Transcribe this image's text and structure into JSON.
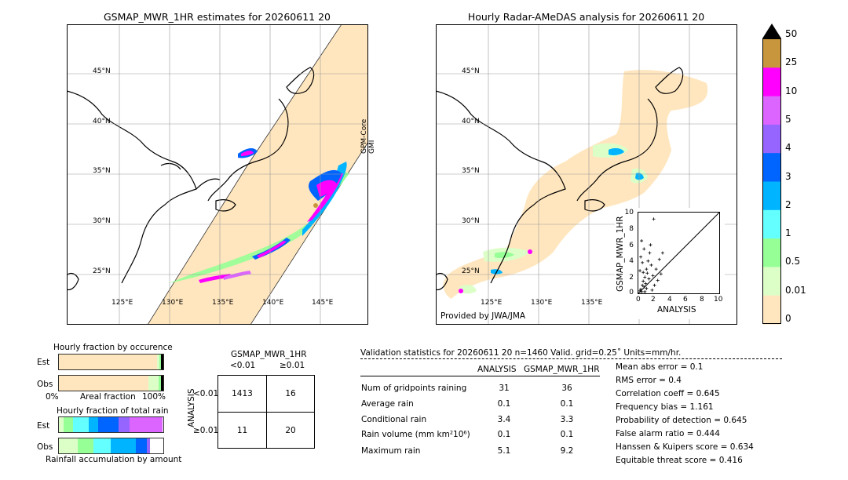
{
  "left_map": {
    "title": "GSMAP_MWR_1HR estimates for 20260611 20",
    "sensor_label_1": "GPM-Core",
    "sensor_label_2": "GMI",
    "lat_labels": [
      "45°N",
      "40°N",
      "35°N",
      "30°N",
      "25°N"
    ],
    "lon_labels": [
      "125°E",
      "130°E",
      "135°E",
      "140°E",
      "145°E"
    ]
  },
  "right_map": {
    "title": "Hourly Radar-AMeDAS analysis for 20260611 20",
    "credit": "Provided by JWA/JMA",
    "lat_labels": [
      "45°N",
      "40°N",
      "35°N",
      "30°N",
      "25°N"
    ],
    "lon_labels": [
      "125°E",
      "130°E",
      "135°E"
    ]
  },
  "colorbar": {
    "levels": [
      "50",
      "25",
      "10",
      "5",
      "4",
      "3",
      "2",
      "1",
      "0.5",
      "0.01",
      "0"
    ],
    "colors": [
      "#c8963c",
      "#ff00ff",
      "#dc64ff",
      "#9664ff",
      "#0064ff",
      "#00b4ff",
      "#64ffff",
      "#96ff96",
      "#dcffc8",
      "#ffe6be"
    ],
    "over_color": "#000000"
  },
  "scatter": {
    "ylabel": "GSMAP_MWR_1HR",
    "xlabel": "ANALYSIS",
    "ticks": [
      "0",
      "2",
      "4",
      "6",
      "8",
      "10"
    ]
  },
  "fraction_occurrence": {
    "title": "Hourly fraction by occurence",
    "rows": [
      "Est",
      "Obs"
    ],
    "xlabel_left": "0%",
    "xlabel_mid": "Areal fraction",
    "xlabel_right": "100%"
  },
  "fraction_total": {
    "title": "Hourly fraction of total rain",
    "rows": [
      "Est",
      "Obs"
    ],
    "footer": "Rainfall accumulation by amount"
  },
  "contingency": {
    "title": "GSMAP_MWR_1HR",
    "col_headers": [
      "<0.01",
      "≥0.01"
    ],
    "row_label": "ANALYSIS",
    "row_headers": [
      "<0.01",
      "≥0.01"
    ],
    "cells": [
      [
        "1413",
        "16"
      ],
      [
        "11",
        "20"
      ]
    ]
  },
  "validation": {
    "header": "Validation statistics for 20260611 20  n=1460 Valid. grid=0.25˚ Units=mm/hr.",
    "col1": "ANALYSIS",
    "col2": "GSMAP_MWR_1HR",
    "rows": [
      {
        "label": "Num of gridpoints raining",
        "a": "31",
        "b": "36"
      },
      {
        "label": "Average rain",
        "a": "0.1",
        "b": "0.1"
      },
      {
        "label": "Conditional rain",
        "a": "3.4",
        "b": "3.3"
      },
      {
        "label": "Rain volume (mm km²10⁶)",
        "a": "0.1",
        "b": "0.1"
      },
      {
        "label": "Maximum rain",
        "a": "5.1",
        "b": "9.2"
      }
    ],
    "scores": [
      "Mean abs error =    0.1",
      "RMS error =    0.4",
      "Correlation coeff =  0.645",
      "Frequency bias =  1.161",
      "Probability of detection =  0.645",
      "False alarm ratio =  0.444",
      "Hanssen & Kuipers score =  0.634",
      "Equitable threat score =  0.416"
    ]
  }
}
